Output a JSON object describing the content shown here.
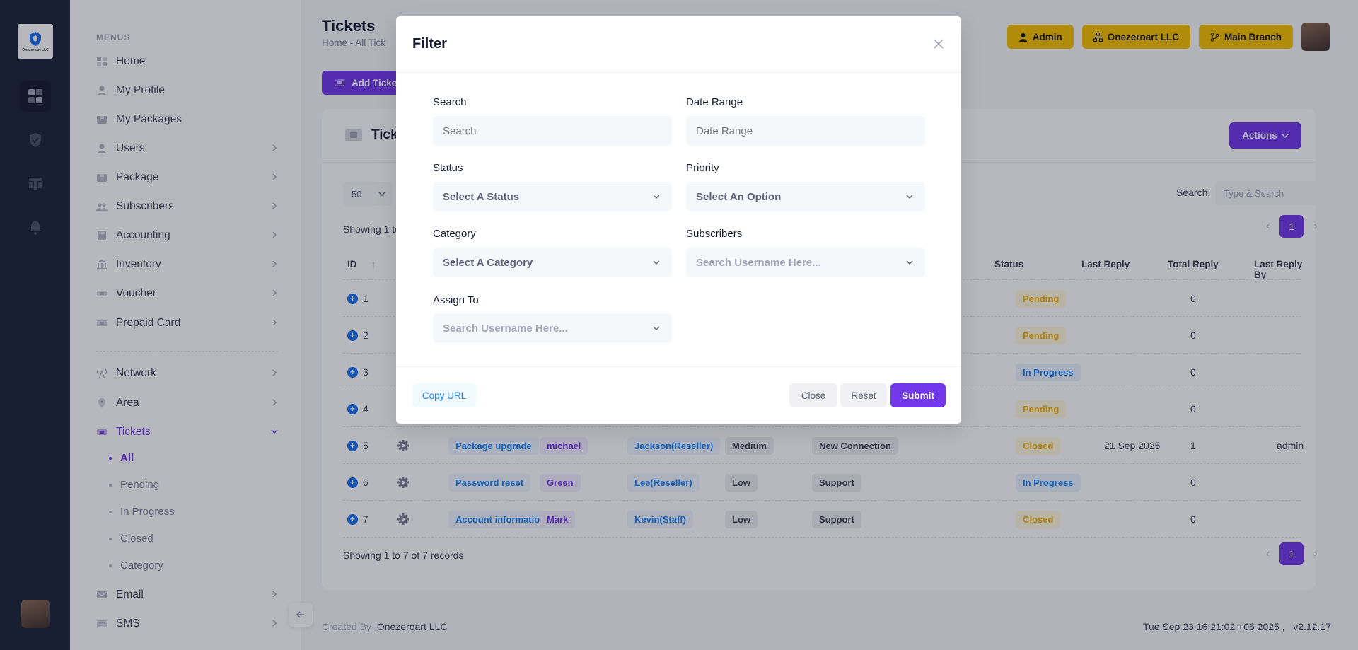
{
  "brand": {
    "logo_text": "Onezeroart LLC"
  },
  "sidebar": {
    "section_label": "MENUS",
    "items": [
      {
        "label": "Home",
        "icon": "home-icon"
      },
      {
        "label": "My Profile",
        "icon": "user-icon"
      },
      {
        "label": "My Packages",
        "icon": "package-icon"
      },
      {
        "label": "Users",
        "icon": "user-icon"
      },
      {
        "label": "Package",
        "icon": "package-icon"
      },
      {
        "label": "Subscribers",
        "icon": "users-icon"
      },
      {
        "label": "Accounting",
        "icon": "calculator-icon"
      },
      {
        "label": "Inventory",
        "icon": "bank-icon"
      },
      {
        "label": "Voucher",
        "icon": "ticket-icon"
      },
      {
        "label": "Prepaid Card",
        "icon": "ticket-icon"
      },
      {
        "label": "Network",
        "icon": "antenna-icon"
      },
      {
        "label": "Area",
        "icon": "location-icon"
      },
      {
        "label": "Tickets",
        "icon": "ticket-icon"
      },
      {
        "label": "Email",
        "icon": "mail-icon"
      },
      {
        "label": "SMS",
        "icon": "sms-icon"
      }
    ],
    "tickets_sub": [
      "All",
      "Pending",
      "In Progress",
      "Closed",
      "Category"
    ]
  },
  "header": {
    "title": "Tickets",
    "breadcrumb": "Home  -  All Tick",
    "buttons": [
      "Admin",
      "Onezeroart LLC",
      "Main Branch"
    ],
    "add_button": "Add Ticket"
  },
  "card": {
    "title": "Tick",
    "actions_label": "Actions",
    "page_length": "50",
    "showing_top": "Showing 1 to",
    "showing_bottom": "Showing 1 to 7 of 7 records",
    "search_label": "Search:",
    "search_placeholder": "Type & Search",
    "current_page": "1",
    "columns": {
      "id": "ID",
      "status": "Status",
      "last_reply": "Last Reply",
      "total_reply": "Total Reply",
      "last_reply_by": "Last Reply By"
    },
    "rows": [
      {
        "id": "1",
        "subject": "",
        "user": "",
        "assigned": "",
        "priority": "",
        "category": "",
        "status": "Pending",
        "last_reply": "",
        "total": "0",
        "by": ""
      },
      {
        "id": "2",
        "subject": "",
        "user": "",
        "assigned": "",
        "priority": "",
        "category": "",
        "status": "Pending",
        "last_reply": "",
        "total": "0",
        "by": ""
      },
      {
        "id": "3",
        "subject": "",
        "user": "",
        "assigned": "",
        "priority": "",
        "category": "",
        "status": "In Progress",
        "last_reply": "",
        "total": "0",
        "by": ""
      },
      {
        "id": "4",
        "subject": "",
        "user": "",
        "assigned": "",
        "priority": "",
        "category": "",
        "status": "Pending",
        "last_reply": "",
        "total": "0",
        "by": ""
      },
      {
        "id": "5",
        "subject": "Package upgrade",
        "user": "michael",
        "assigned": "Jackson(Reseller)",
        "priority": "Medium",
        "category": "New Connection",
        "status": "Closed",
        "last_reply": "21 Sep 2025",
        "total": "1",
        "by": "admin"
      },
      {
        "id": "6",
        "subject": "Password reset",
        "user": "Green",
        "assigned": "Lee(Reseller)",
        "priority": "Low",
        "category": "Support",
        "status": "In Progress",
        "last_reply": "",
        "total": "0",
        "by": ""
      },
      {
        "id": "7",
        "subject": "Account information",
        "user": "Mark",
        "assigned": "Kevin(Staff)",
        "priority": "Low",
        "category": "Support",
        "status": "Closed",
        "last_reply": "",
        "total": "0",
        "by": ""
      }
    ]
  },
  "footer": {
    "created_by_label": "Created By",
    "created_by": "Onezeroart LLC",
    "datetime": "Tue Sep 23 16:21:02 +06 2025 ,",
    "version": "v2.12.17"
  },
  "modal": {
    "title": "Filter",
    "fields": {
      "search": {
        "label": "Search",
        "placeholder": "Search"
      },
      "date_range": {
        "label": "Date Range",
        "placeholder": "Date Range"
      },
      "status": {
        "label": "Status",
        "value": "Select A Status"
      },
      "priority": {
        "label": "Priority",
        "value": "Select An Option"
      },
      "category": {
        "label": "Category",
        "value": "Select A Category"
      },
      "subscribers": {
        "label": "Subscribers",
        "placeholder": "Search Username Here..."
      },
      "assign_to": {
        "label": "Assign To",
        "placeholder": "Search Username Here..."
      }
    },
    "buttons": {
      "copy_url": "Copy URL",
      "close": "Close",
      "reset": "Reset",
      "submit": "Submit"
    }
  },
  "colors": {
    "accent": "#7239ea",
    "sidebar_dark": "#1b2337",
    "warning": "#f6c000",
    "info": "#1b84ff"
  }
}
